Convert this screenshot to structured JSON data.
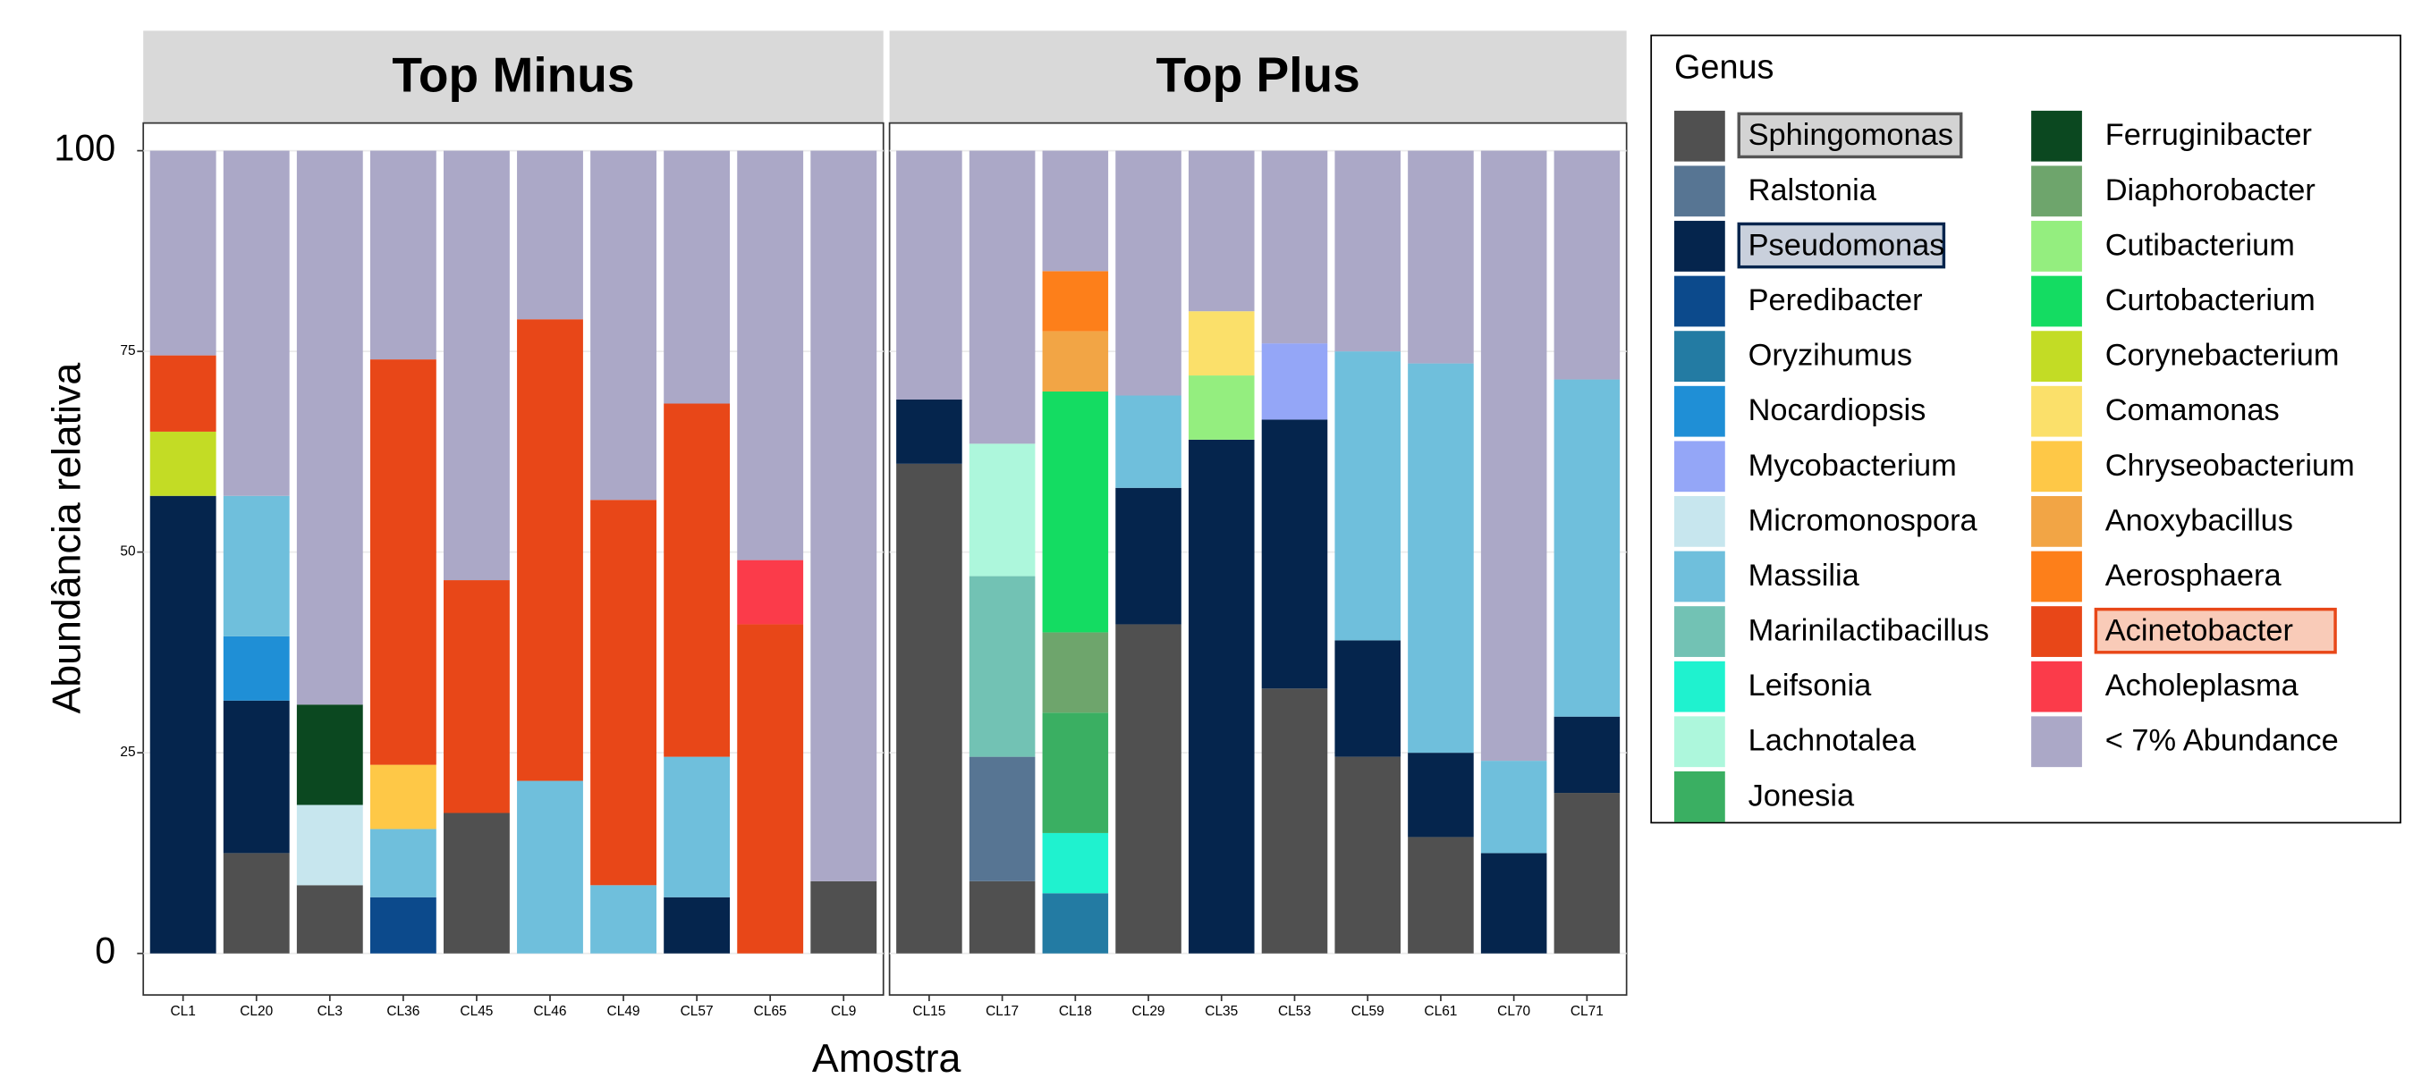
{
  "chart_data": {
    "type": "stacked_bar",
    "y_label": "Abundância relativa",
    "x_label": "Amostra",
    "legend_title": "Genus",
    "ylim": [
      0,
      100
    ],
    "yticks": [
      0,
      25,
      50,
      75,
      100
    ],
    "grid": true,
    "facets": [
      {
        "title": "Top Minus",
        "categories": [
          "CL1",
          "CL20",
          "CL3",
          "CL36",
          "CL45",
          "CL46",
          "CL49",
          "CL57",
          "CL65",
          "CL9"
        ]
      },
      {
        "title": "Top Plus",
        "categories": [
          "CL15",
          "CL17",
          "CL18",
          "CL29",
          "CL35",
          "CL53",
          "CL59",
          "CL61",
          "CL70",
          "CL71"
        ]
      }
    ],
    "series": [
      {
        "name": "Sphingomonas",
        "color": "#505050",
        "label_box": {
          "fill": "#d3d3d3",
          "stroke": "#555555"
        },
        "values": [
          [
            null,
            12.5,
            8.5,
            null,
            17.5,
            null,
            null,
            null,
            null,
            9
          ],
          [
            61,
            9,
            null,
            41,
            null,
            33,
            24.5,
            14.5,
            null,
            20
          ]
        ]
      },
      {
        "name": "Ralstonia",
        "color": "#577593",
        "values": [
          [
            null,
            null,
            null,
            null,
            null,
            null,
            null,
            null,
            null,
            null
          ],
          [
            null,
            15.5,
            null,
            null,
            null,
            null,
            null,
            null,
            null,
            null
          ]
        ]
      },
      {
        "name": "Pseudomonas",
        "color": "#05254d",
        "label_box": {
          "fill": "#c9d0dc",
          "stroke": "#05254d"
        },
        "values": [
          [
            57,
            19,
            null,
            null,
            null,
            null,
            null,
            7,
            null,
            null
          ],
          [
            8,
            null,
            null,
            17,
            64,
            33.5,
            14.5,
            10.5,
            12.5,
            9.5
          ]
        ]
      },
      {
        "name": "Peredibacter",
        "color": "#0c4a8c",
        "values": [
          [
            null,
            null,
            null,
            7,
            null,
            null,
            null,
            null,
            null,
            null
          ],
          [
            null,
            null,
            null,
            null,
            null,
            null,
            null,
            null,
            null,
            null
          ]
        ]
      },
      {
        "name": "Oryzihumus",
        "color": "#237ba3",
        "values": [
          [
            null,
            null,
            null,
            null,
            null,
            null,
            null,
            null,
            null,
            null
          ],
          [
            null,
            null,
            7.5,
            null,
            null,
            null,
            null,
            null,
            null,
            null
          ]
        ]
      },
      {
        "name": "Nocardiopsis",
        "color": "#1f8fd6",
        "values": [
          [
            null,
            8,
            null,
            null,
            null,
            null,
            null,
            null,
            null,
            null
          ],
          [
            null,
            null,
            null,
            null,
            null,
            null,
            null,
            null,
            null,
            null
          ]
        ]
      },
      {
        "name": "Mycobacterium",
        "color": "#94a6f7",
        "values": [
          [
            null,
            null,
            null,
            null,
            null,
            null,
            null,
            null,
            null,
            null
          ],
          [
            null,
            null,
            null,
            null,
            null,
            9.5,
            null,
            null,
            null,
            null
          ]
        ]
      },
      {
        "name": "Micromonospora",
        "color": "#c7e6ee",
        "values": [
          [
            null,
            null,
            10,
            null,
            null,
            null,
            null,
            null,
            null,
            null
          ],
          [
            null,
            null,
            null,
            null,
            null,
            null,
            null,
            null,
            null,
            null
          ]
        ]
      },
      {
        "name": "Massilia",
        "color": "#6fbfdc",
        "values": [
          [
            null,
            17.5,
            null,
            8.5,
            null,
            21.5,
            8.5,
            17.5,
            null,
            null
          ],
          [
            null,
            null,
            null,
            11.5,
            null,
            null,
            36,
            48.5,
            11.5,
            42
          ]
        ]
      },
      {
        "name": "Marinilactibacillus",
        "color": "#72c2b4",
        "values": [
          [
            null,
            null,
            null,
            null,
            null,
            null,
            null,
            null,
            null,
            null
          ],
          [
            null,
            22.5,
            null,
            null,
            null,
            null,
            null,
            null,
            null,
            null
          ]
        ]
      },
      {
        "name": "Leifsonia",
        "color": "#1ff2cf",
        "values": [
          [
            null,
            null,
            null,
            null,
            null,
            null,
            null,
            null,
            null,
            null
          ],
          [
            null,
            null,
            7.5,
            null,
            null,
            null,
            null,
            null,
            null,
            null
          ]
        ]
      },
      {
        "name": "Lachnotalea",
        "color": "#adf7dc",
        "values": [
          [
            null,
            null,
            null,
            null,
            null,
            null,
            null,
            null,
            null,
            null
          ],
          [
            null,
            16.5,
            null,
            null,
            null,
            null,
            null,
            null,
            null,
            null
          ]
        ]
      },
      {
        "name": "Jonesia",
        "color": "#3aaf62",
        "values": [
          [
            null,
            null,
            null,
            null,
            null,
            null,
            null,
            null,
            null,
            null
          ],
          [
            null,
            null,
            15,
            null,
            null,
            null,
            null,
            null,
            null,
            null
          ]
        ]
      },
      {
        "name": "Ferruginibacter",
        "color": "#0b4820",
        "values": [
          [
            null,
            null,
            12.5,
            null,
            null,
            null,
            null,
            null,
            null,
            null
          ],
          [
            null,
            null,
            null,
            null,
            null,
            null,
            null,
            null,
            null,
            null
          ]
        ]
      },
      {
        "name": "Diaphorobacter",
        "color": "#6ea56c",
        "values": [
          [
            null,
            null,
            null,
            null,
            null,
            null,
            null,
            null,
            null,
            null
          ],
          [
            null,
            null,
            10,
            null,
            null,
            null,
            null,
            null,
            null,
            null
          ]
        ]
      },
      {
        "name": "Cutibacterium",
        "color": "#94ee7f",
        "values": [
          [
            null,
            null,
            null,
            null,
            null,
            null,
            null,
            null,
            null,
            null
          ],
          [
            null,
            null,
            null,
            null,
            8,
            null,
            null,
            null,
            null,
            null
          ]
        ]
      },
      {
        "name": "Curtobacterium",
        "color": "#14dc62",
        "values": [
          [
            null,
            null,
            null,
            null,
            null,
            null,
            null,
            null,
            null,
            null
          ],
          [
            null,
            null,
            30,
            null,
            null,
            null,
            null,
            null,
            null,
            null
          ]
        ]
      },
      {
        "name": "Corynebacterium",
        "color": "#c3dc25",
        "values": [
          [
            8,
            null,
            null,
            null,
            null,
            null,
            null,
            null,
            null,
            null
          ],
          [
            null,
            null,
            null,
            null,
            null,
            null,
            null,
            null,
            null,
            null
          ]
        ]
      },
      {
        "name": "Comamonas",
        "color": "#fbe06a",
        "values": [
          [
            null,
            null,
            null,
            null,
            null,
            null,
            null,
            null,
            null,
            null
          ],
          [
            null,
            null,
            null,
            null,
            8,
            null,
            null,
            null,
            null,
            null
          ]
        ]
      },
      {
        "name": "Chryseobacterium",
        "color": "#fec847",
        "values": [
          [
            null,
            null,
            null,
            8,
            null,
            null,
            null,
            null,
            null,
            null
          ],
          [
            null,
            null,
            null,
            null,
            null,
            null,
            null,
            null,
            null,
            null
          ]
        ]
      },
      {
        "name": "Anoxybacillus",
        "color": "#f2a545",
        "values": [
          [
            null,
            null,
            null,
            null,
            null,
            null,
            null,
            null,
            null,
            null
          ],
          [
            null,
            null,
            7.5,
            null,
            null,
            null,
            null,
            null,
            null,
            null
          ]
        ]
      },
      {
        "name": "Aerosphaera",
        "color": "#fd7f1a",
        "values": [
          [
            null,
            null,
            null,
            null,
            null,
            null,
            null,
            null,
            null,
            null
          ],
          [
            null,
            null,
            7.5,
            null,
            null,
            null,
            null,
            null,
            null,
            null
          ]
        ]
      },
      {
        "name": "Acinetobacter",
        "color": "#e84718",
        "label_box": {
          "fill": "#f9cbb8",
          "stroke": "#e84718"
        },
        "values": [
          [
            9.5,
            null,
            null,
            50.5,
            29,
            57.5,
            48,
            44,
            41,
            null
          ],
          [
            null,
            null,
            null,
            null,
            null,
            null,
            null,
            null,
            null,
            null
          ]
        ]
      },
      {
        "name": "Acholeplasma",
        "color": "#fb3b4a",
        "values": [
          [
            null,
            null,
            null,
            null,
            null,
            null,
            null,
            null,
            8,
            null
          ],
          [
            null,
            null,
            null,
            null,
            null,
            null,
            null,
            null,
            null,
            null
          ]
        ]
      },
      {
        "name": "< 7% Abundance",
        "color": "#aba8c7",
        "values": [
          [
            25.5,
            43,
            69,
            26,
            53.5,
            21,
            43.5,
            31.5,
            51,
            91
          ],
          [
            31,
            36.5,
            15,
            30.5,
            20,
            24,
            25,
            26.5,
            76,
            28.5
          ]
        ]
      }
    ]
  }
}
